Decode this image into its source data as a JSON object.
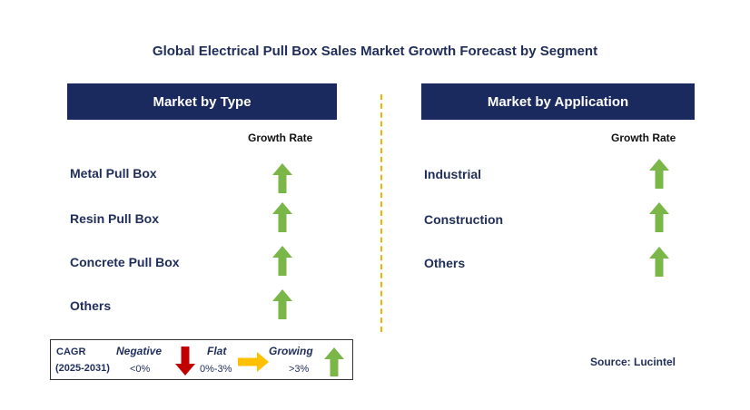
{
  "title": "Global Electrical Pull Box Sales Market Growth Forecast by Segment",
  "left_panel": {
    "header": "Market by Type",
    "growth_rate_label": "Growth Rate",
    "rows": [
      {
        "label": "Metal Pull Box",
        "trend": "growing"
      },
      {
        "label": "Resin Pull Box",
        "trend": "growing"
      },
      {
        "label": "Concrete Pull Box",
        "trend": "growing"
      },
      {
        "label": "Others",
        "trend": "growing"
      }
    ]
  },
  "right_panel": {
    "header": "Market by Application",
    "growth_rate_label": "Growth Rate",
    "rows": [
      {
        "label": "Industrial",
        "trend": "growing"
      },
      {
        "label": "Construction",
        "trend": "growing"
      },
      {
        "label": "Others",
        "trend": "growing"
      }
    ]
  },
  "legend": {
    "cagr_label": "CAGR",
    "period": "(2025-2031)",
    "negative": {
      "label": "Negative",
      "range": "<0%",
      "icon": "down-arrow-icon",
      "color": "#c00000"
    },
    "flat": {
      "label": "Flat",
      "range": "0%-3%",
      "icon": "right-arrow-icon",
      "color": "#ffc000"
    },
    "growing": {
      "label": "Growing",
      "range": ">3%",
      "icon": "up-arrow-icon",
      "color": "#7ab648"
    }
  },
  "source": "Source: Lucintel",
  "colors": {
    "header_bg": "#1a2a5e",
    "divider": "#f0b400",
    "up_arrow": "#7ab648"
  }
}
